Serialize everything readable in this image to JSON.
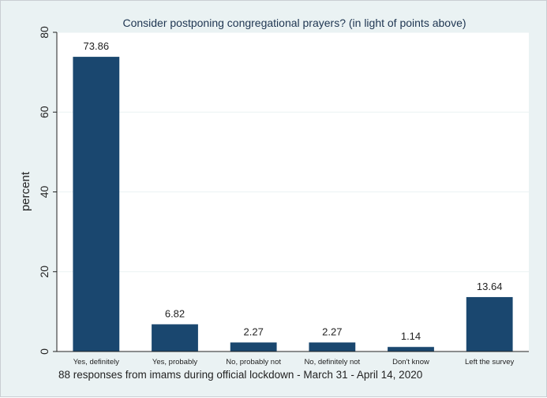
{
  "chart_data": {
    "type": "bar",
    "title": "Consider postponing congregational prayers? (in light of points above)",
    "ylabel": "percent",
    "xlabel": "",
    "categories": [
      "Yes, definitely",
      "Yes, probably",
      "No, probably not",
      "No, definitely not",
      "Don't know",
      "Left the survey"
    ],
    "values": [
      73.86,
      6.82,
      2.27,
      2.27,
      1.14,
      13.64
    ],
    "value_labels": [
      "73.86",
      "6.82",
      "2.27",
      "2.27",
      "1.14",
      "13.64"
    ],
    "ylim": [
      0,
      80
    ],
    "yticks": [
      0,
      20,
      40,
      60,
      80
    ],
    "ytick_labels": [
      "0",
      "20",
      "40",
      "60",
      "80"
    ],
    "grid": true,
    "note": "88 responses from imams during official lockdown - March 31 - April 14, 2020",
    "colors": {
      "bar": "#1a476f",
      "background": "#eaf2f3",
      "plot_background": "#ffffff",
      "grid": "#eaf2f3",
      "title": "#1e3551"
    }
  }
}
